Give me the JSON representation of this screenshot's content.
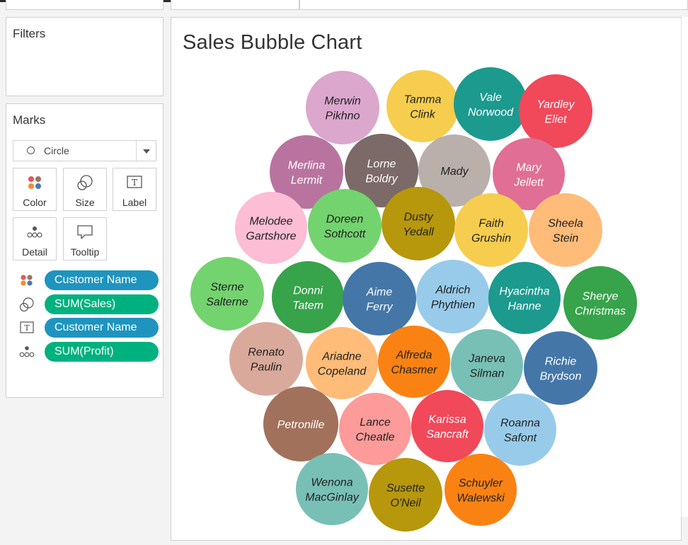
{
  "filters": {
    "title": "Filters"
  },
  "marks": {
    "title": "Marks",
    "mark_type": "Circle",
    "buttons": {
      "color": "Color",
      "size": "Size",
      "label": "Label",
      "detail": "Detail",
      "tooltip": "Tooltip"
    },
    "shelf": [
      {
        "icon": "color-dots-icon",
        "field": "Customer Name",
        "kind": "dimension"
      },
      {
        "icon": "size-icon",
        "field": "SUM(Sales)",
        "kind": "measure"
      },
      {
        "icon": "label-icon",
        "field": "Customer Name",
        "kind": "dimension"
      },
      {
        "icon": "detail-icon",
        "field": "SUM(Profit)",
        "kind": "measure"
      }
    ]
  },
  "colors": {
    "dimension_pill": "#1f94bf",
    "measure_pill": "#00b180"
  },
  "chart": {
    "title": "Sales Bubble Chart",
    "bubbles": [
      {
        "name": [
          "Merwin",
          "Pikhno"
        ],
        "color": "#dba7cd",
        "text": "#222"
      },
      {
        "name": [
          "Tamma",
          "Clink"
        ],
        "color": "#f6cd4e",
        "text": "#222"
      },
      {
        "name": [
          "Vale",
          "Norwood"
        ],
        "color": "#1c9a8e",
        "text": "#fff"
      },
      {
        "name": [
          "Yardley",
          "Eliet"
        ],
        "color": "#f1485a",
        "text": "#fff"
      },
      {
        "name": [
          "Merlina",
          "Lermit"
        ],
        "color": "#b8749f",
        "text": "#fff"
      },
      {
        "name": [
          "Lorne",
          "Boldry"
        ],
        "color": "#7b6a67",
        "text": "#fff"
      },
      {
        "name": [
          "Mady"
        ],
        "color": "#bab0ab",
        "text": "#222"
      },
      {
        "name": [
          "Mary",
          "Jellett"
        ],
        "color": "#e06e95",
        "text": "#fff"
      },
      {
        "name": [
          "Melodee",
          "Gartshore"
        ],
        "color": "#fcbdd5",
        "text": "#222"
      },
      {
        "name": [
          "Doreen",
          "Sothcott"
        ],
        "color": "#73d36e",
        "text": "#222"
      },
      {
        "name": [
          "Dusty",
          "Yedall"
        ],
        "color": "#b7970c",
        "text": "#222"
      },
      {
        "name": [
          "Faith",
          "Grushin"
        ],
        "color": "#f6cd4e",
        "text": "#222"
      },
      {
        "name": [
          "Sheela",
          "Stein"
        ],
        "color": "#ffbb78",
        "text": "#222"
      },
      {
        "name": [
          "Sterne",
          "Salterne"
        ],
        "color": "#73d36e",
        "text": "#222"
      },
      {
        "name": [
          "Donni",
          "Tatem"
        ],
        "color": "#37a34a",
        "text": "#fff"
      },
      {
        "name": [
          "Aime",
          "Ferry"
        ],
        "color": "#4477a8",
        "text": "#fff"
      },
      {
        "name": [
          "Aldrich",
          "Phythien"
        ],
        "color": "#98cbea",
        "text": "#222"
      },
      {
        "name": [
          "Hyacintha",
          "Hanne"
        ],
        "color": "#1c9a8e",
        "text": "#fff"
      },
      {
        "name": [
          "Sherye",
          "Christmas"
        ],
        "color": "#37a34a",
        "text": "#fff"
      },
      {
        "name": [
          "Renato",
          "Paulin"
        ],
        "color": "#d9aa9b",
        "text": "#222"
      },
      {
        "name": [
          "Ariadne",
          "Copeland"
        ],
        "color": "#ffbb78",
        "text": "#222"
      },
      {
        "name": [
          "Alfreda",
          "Chasmer"
        ],
        "color": "#fa8213",
        "text": "#222"
      },
      {
        "name": [
          "Janeva",
          "Silman"
        ],
        "color": "#78c0b6",
        "text": "#222"
      },
      {
        "name": [
          "Richie",
          "Brydson"
        ],
        "color": "#4477a8",
        "text": "#fff"
      },
      {
        "name": [
          "Petronille"
        ],
        "color": "#a1715c",
        "text": "#fff"
      },
      {
        "name": [
          "Lance",
          "Cheatle"
        ],
        "color": "#fc9b99",
        "text": "#222"
      },
      {
        "name": [
          "Karissa",
          "Sancraft"
        ],
        "color": "#f1485a",
        "text": "#fff"
      },
      {
        "name": [
          "Roanna",
          "Safont"
        ],
        "color": "#98cbea",
        "text": "#222"
      },
      {
        "name": [
          "Wenona",
          "MacGinlay"
        ],
        "color": "#78c0b6",
        "text": "#222"
      },
      {
        "name": [
          "Susette",
          "O'Neil"
        ],
        "color": "#b7970c",
        "text": "#222"
      },
      {
        "name": [
          "Schuyler",
          "Walewski"
        ],
        "color": "#fa8213",
        "text": "#222"
      }
    ]
  }
}
